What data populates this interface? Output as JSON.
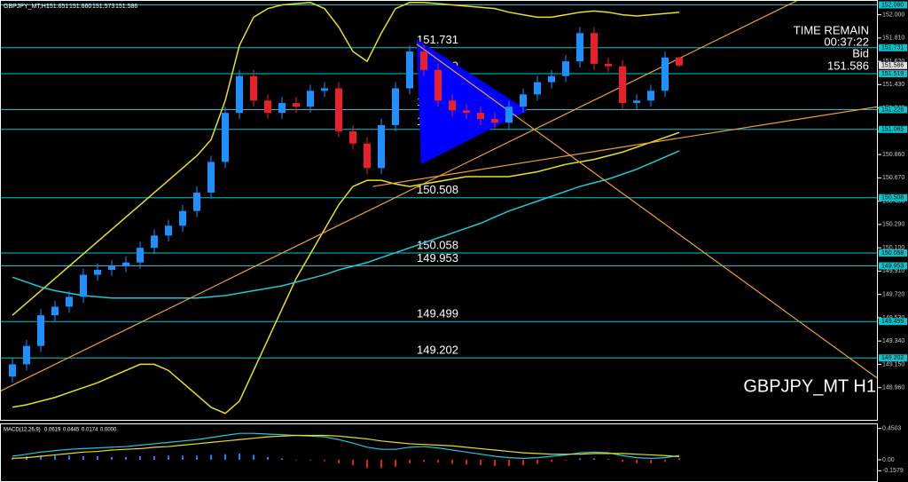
{
  "chart_data": {
    "type": "candlestick",
    "symbol": "GBPJPY_MT,H1",
    "header_values": [
      "151.651",
      "151.660",
      "151.573",
      "151.586"
    ],
    "watermark": "GBPJPY_MT H1",
    "time_remain": {
      "label": "TIME REMAIN",
      "value": "00:37:22"
    },
    "bid": {
      "label": "Bid",
      "value": 151.586
    },
    "ylim": [
      148.69,
      152.12
    ],
    "yticks": [
      {
        "value": 152.0,
        "label": "152.000"
      },
      {
        "value": 151.81,
        "label": "151.810"
      },
      {
        "value": 151.62,
        "label": "151.620"
      },
      {
        "value": 151.43,
        "label": "151.430"
      },
      {
        "value": 151.24,
        "label": "151.240"
      },
      {
        "value": 151.05,
        "label": "151.050"
      },
      {
        "value": 150.86,
        "label": "150.860"
      },
      {
        "value": 150.67,
        "label": "150.670"
      },
      {
        "value": 150.48,
        "label": "150.480"
      },
      {
        "value": 150.29,
        "label": "150.290"
      },
      {
        "value": 150.1,
        "label": "150.100"
      },
      {
        "value": 149.91,
        "label": "149.910"
      },
      {
        "value": 149.72,
        "label": "149.720"
      },
      {
        "value": 149.53,
        "label": "149.530"
      },
      {
        "value": 149.34,
        "label": "149.340"
      },
      {
        "value": 149.15,
        "label": "149.150"
      },
      {
        "value": 148.96,
        "label": "148.960"
      }
    ],
    "levels": [
      {
        "value": 152.08,
        "label": "152.080"
      },
      151.731,
      151.519,
      151.226,
      151.065,
      150.508,
      150.058,
      149.953,
      149.499,
      149.202
    ],
    "level_color": "#00c8d0",
    "colors": {
      "up": "#1e90ff",
      "down": "#e8202a"
    },
    "candles": {
      "open": [
        149.05,
        149.15,
        149.3,
        149.55,
        149.62,
        149.7,
        149.88,
        149.92,
        149.95,
        149.98,
        150.1,
        150.2,
        150.28,
        150.4,
        150.55,
        150.8,
        151.2,
        151.5,
        151.3,
        151.2,
        151.28,
        151.25,
        151.38,
        151.4,
        151.05,
        150.95,
        150.75,
        151.1,
        151.4,
        151.7,
        151.55,
        151.3,
        151.22,
        151.2,
        151.15,
        151.12,
        151.25,
        151.35,
        151.45,
        151.5,
        151.62,
        151.85,
        151.6,
        151.58,
        151.28,
        151.3,
        151.38,
        151.651
      ],
      "high": [
        149.2,
        149.35,
        149.6,
        149.67,
        149.75,
        149.93,
        149.97,
        150.0,
        150.03,
        150.15,
        150.25,
        150.33,
        150.45,
        150.6,
        150.85,
        151.25,
        151.55,
        151.55,
        151.35,
        151.33,
        151.33,
        151.43,
        151.45,
        151.45,
        151.1,
        151.0,
        151.15,
        151.45,
        151.75,
        151.75,
        151.6,
        151.35,
        151.27,
        151.25,
        151.2,
        151.3,
        151.4,
        151.5,
        151.55,
        151.67,
        151.9,
        151.9,
        151.65,
        151.63,
        151.35,
        151.43,
        151.7,
        151.66
      ],
      "low": [
        149.0,
        149.1,
        149.25,
        149.5,
        149.57,
        149.65,
        149.83,
        149.87,
        149.9,
        149.93,
        150.05,
        150.15,
        150.23,
        150.35,
        150.5,
        150.75,
        151.15,
        151.25,
        151.15,
        151.15,
        151.2,
        151.2,
        151.33,
        151.0,
        150.9,
        150.7,
        150.7,
        151.05,
        151.35,
        151.5,
        151.25,
        151.17,
        151.15,
        151.1,
        151.07,
        151.07,
        151.2,
        151.3,
        151.4,
        151.45,
        151.57,
        151.55,
        151.53,
        151.23,
        151.23,
        151.25,
        151.33,
        151.573
      ],
      "close": [
        149.15,
        149.3,
        149.55,
        149.62,
        149.7,
        149.88,
        149.92,
        149.95,
        149.98,
        150.1,
        150.2,
        150.28,
        150.4,
        150.55,
        150.8,
        151.2,
        151.5,
        151.3,
        151.2,
        151.28,
        151.25,
        151.38,
        151.4,
        151.05,
        150.95,
        150.75,
        151.1,
        151.4,
        151.7,
        151.55,
        151.3,
        151.22,
        151.2,
        151.15,
        151.12,
        151.25,
        151.35,
        151.45,
        151.5,
        151.62,
        151.85,
        151.6,
        151.58,
        151.28,
        151.3,
        151.38,
        151.651,
        151.586
      ]
    },
    "overlays": [
      {
        "color": "#e8e020",
        "values": [
          149.55,
          149.65,
          149.75,
          149.85,
          149.95,
          150.05,
          150.15,
          150.25,
          150.35,
          150.45,
          150.55,
          150.65,
          150.75,
          150.85,
          150.98,
          151.3,
          151.75,
          151.98,
          152.05,
          152.08,
          152.09,
          152.1,
          152.05,
          151.9,
          151.7,
          151.62,
          151.85,
          152.05,
          152.1,
          152.1,
          152.09,
          152.08,
          152.07,
          152.06,
          152.05,
          152.02,
          152.0,
          151.98,
          151.98,
          152.0,
          152.02,
          152.03,
          152.02,
          152.0,
          151.99,
          152.0,
          152.01,
          152.02
        ]
      },
      {
        "color": "#e8e020",
        "values": [
          148.8,
          148.82,
          148.85,
          148.88,
          148.92,
          148.96,
          149.0,
          149.05,
          149.1,
          149.15,
          149.15,
          149.1,
          149.0,
          148.9,
          148.8,
          148.75,
          148.85,
          149.1,
          149.35,
          149.6,
          149.85,
          150.05,
          150.25,
          150.45,
          150.6,
          150.65,
          150.65,
          150.62,
          150.6,
          150.62,
          150.64,
          150.66,
          150.68,
          150.68,
          150.68,
          150.68,
          150.7,
          150.72,
          150.75,
          150.78,
          150.8,
          150.82,
          150.85,
          150.88,
          150.92,
          150.96,
          151.0,
          151.04
        ]
      },
      {
        "color": "#20c8d8",
        "values": [
          149.86,
          149.82,
          149.78,
          149.75,
          149.73,
          149.71,
          149.7,
          149.69,
          149.69,
          149.69,
          149.69,
          149.69,
          149.69,
          149.69,
          149.7,
          149.71,
          149.73,
          149.75,
          149.77,
          149.79,
          149.82,
          149.85,
          149.88,
          149.92,
          149.95,
          149.98,
          150.02,
          150.06,
          150.1,
          150.14,
          150.18,
          150.22,
          150.26,
          150.3,
          150.35,
          150.4,
          150.44,
          150.48,
          150.52,
          150.56,
          150.6,
          150.63,
          150.66,
          150.7,
          150.74,
          150.79,
          150.84,
          150.89
        ]
      }
    ],
    "trendlines": [
      {
        "color": "#f0a030",
        "x": [
          -0.875,
          55.4
        ],
        "y": [
          148.93,
          152.12
        ]
      },
      {
        "color": "#f0a030",
        "x": [
          25.4,
          61.0
        ],
        "y": [
          150.6,
          151.25
        ]
      },
      {
        "color": "#f0a030",
        "x": [
          28.5,
          62.0
        ],
        "y": [
          151.76,
          148.95
        ]
      }
    ],
    "triangle": {
      "color": "#0000ff",
      "x": [
        28.5,
        36.3,
        28.8
      ],
      "y": [
        151.8,
        151.22,
        150.78
      ]
    },
    "macd": {
      "title": "MACD(12,26,9)",
      "header_values": [
        "0.0619",
        "0.0445",
        "0.0174",
        "0.0000"
      ],
      "ylim": [
        -0.32,
        0.51
      ],
      "yticks": [
        0.4503,
        {
          "value": 0,
          "label": "0.00"
        },
        -0.1579
      ],
      "main": {
        "color": "#20c8e0",
        "values": [
          0.05,
          0.08,
          0.11,
          0.13,
          0.15,
          0.16,
          0.17,
          0.18,
          0.19,
          0.21,
          0.23,
          0.25,
          0.27,
          0.29,
          0.32,
          0.35,
          0.38,
          0.38,
          0.37,
          0.36,
          0.35,
          0.34,
          0.33,
          0.29,
          0.24,
          0.18,
          0.15,
          0.15,
          0.18,
          0.19,
          0.17,
          0.14,
          0.11,
          0.08,
          0.05,
          0.03,
          0.02,
          0.03,
          0.05,
          0.07,
          0.1,
          0.11,
          0.1,
          0.06,
          0.03,
          0.02,
          0.03,
          0.0619
        ]
      },
      "signal": {
        "color": "#e8e020",
        "values": [
          0.02,
          0.03,
          0.05,
          0.07,
          0.09,
          0.11,
          0.12,
          0.14,
          0.15,
          0.16,
          0.18,
          0.19,
          0.21,
          0.23,
          0.25,
          0.27,
          0.29,
          0.31,
          0.33,
          0.34,
          0.35,
          0.35,
          0.35,
          0.34,
          0.32,
          0.3,
          0.27,
          0.25,
          0.23,
          0.22,
          0.21,
          0.2,
          0.18,
          0.16,
          0.14,
          0.12,
          0.1,
          0.09,
          0.08,
          0.08,
          0.08,
          0.09,
          0.09,
          0.09,
          0.08,
          0.07,
          0.06,
          0.0445
        ]
      },
      "histogram": {
        "up_color": "#2080ff",
        "down_color": "#e02020",
        "values": [
          0.03,
          0.05,
          0.06,
          0.06,
          0.06,
          0.05,
          0.05,
          0.04,
          0.04,
          0.05,
          0.05,
          0.06,
          0.06,
          0.06,
          0.07,
          0.08,
          0.09,
          0.07,
          0.04,
          0.02,
          0.0,
          -0.01,
          -0.02,
          -0.05,
          -0.08,
          -0.12,
          -0.12,
          -0.1,
          -0.05,
          -0.03,
          -0.04,
          -0.06,
          -0.07,
          -0.08,
          -0.09,
          -0.09,
          -0.08,
          -0.06,
          -0.03,
          -0.01,
          0.02,
          0.02,
          0.01,
          -0.03,
          -0.05,
          -0.05,
          -0.03,
          0.0174
        ]
      }
    }
  }
}
